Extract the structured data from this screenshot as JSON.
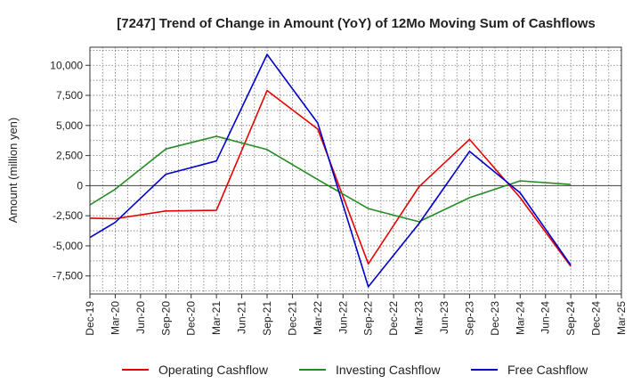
{
  "chart_data": {
    "type": "line",
    "title": "[7247]  Trend of Change in Amount (YoY) of 12Mo Moving Sum of Cashflows",
    "xlabel": "",
    "ylabel": "Amount (million yen)",
    "ylim": [
      -9000,
      11500
    ],
    "yticks": [
      10000,
      7500,
      5000,
      2500,
      0,
      -2500,
      -5000,
      -7500
    ],
    "ytick_labels": [
      "10,000",
      "7,500",
      "5,000",
      "2,500",
      "0",
      "-2,500",
      "-5,000",
      "-7,500"
    ],
    "categories": [
      "Dec-19",
      "Mar-20",
      "Jun-20",
      "Sep-20",
      "Dec-20",
      "Mar-21",
      "Jun-21",
      "Sep-21",
      "Dec-21",
      "Mar-22",
      "Jun-22",
      "Sep-22",
      "Dec-22",
      "Mar-23",
      "Jun-23",
      "Sep-23",
      "Dec-23",
      "Mar-24",
      "Jun-24",
      "Sep-24",
      "Dec-24",
      "Mar-25"
    ],
    "grid": true,
    "legend_position": "bottom",
    "series": [
      {
        "name": "Operating Cashflow",
        "color": "#e60000",
        "values": [
          -2700,
          -2750,
          null,
          -2100,
          null,
          -2050,
          null,
          7900,
          null,
          4700,
          null,
          -6500,
          null,
          -100,
          null,
          3850,
          null,
          -1000,
          null,
          -6700,
          null,
          null
        ]
      },
      {
        "name": "Investing Cashflow",
        "color": "#228b22",
        "values": [
          -1600,
          -300,
          null,
          3050,
          null,
          4100,
          null,
          3000,
          null,
          500,
          null,
          -1900,
          null,
          -3000,
          null,
          -1000,
          null,
          400,
          null,
          100,
          null,
          null
        ]
      },
      {
        "name": "Free Cashflow",
        "color": "#0000cc",
        "values": [
          -4300,
          -3050,
          null,
          950,
          null,
          2050,
          null,
          10900,
          null,
          5200,
          null,
          -8400,
          null,
          -3150,
          null,
          2850,
          null,
          -600,
          null,
          -6600,
          null,
          null
        ]
      }
    ]
  }
}
